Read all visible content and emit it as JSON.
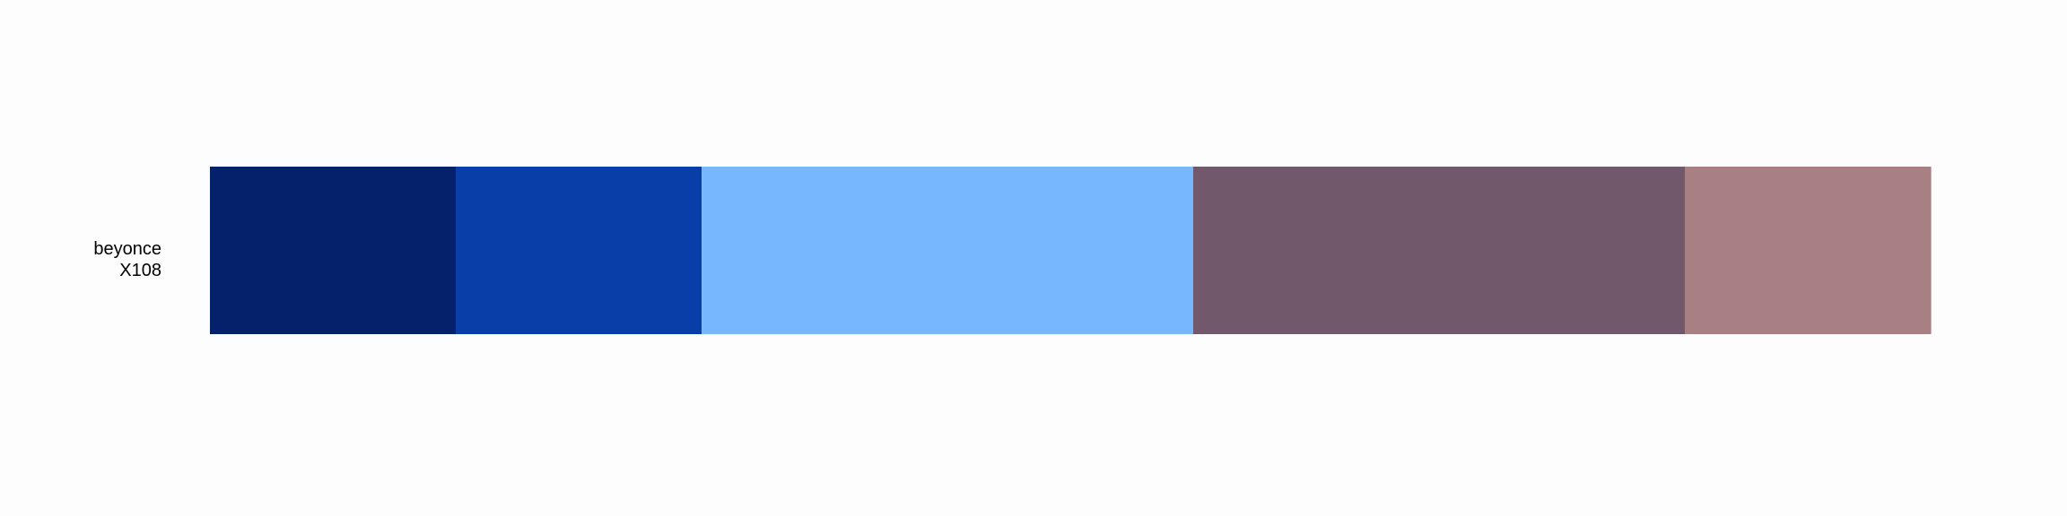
{
  "chart_data": {
    "type": "bar",
    "palette_name": "beyonce",
    "palette_id": "X108",
    "title": "",
    "xlabel": "",
    "ylabel": "",
    "legend": "none",
    "grid": false,
    "segments": [
      {
        "color": "#05216b",
        "value": 1
      },
      {
        "color": "#093ea9",
        "value": 1
      },
      {
        "color": "#76b7fe",
        "value": 2
      },
      {
        "color": "#71586a",
        "value": 2
      },
      {
        "color": "#a88084",
        "value": 1
      }
    ]
  }
}
